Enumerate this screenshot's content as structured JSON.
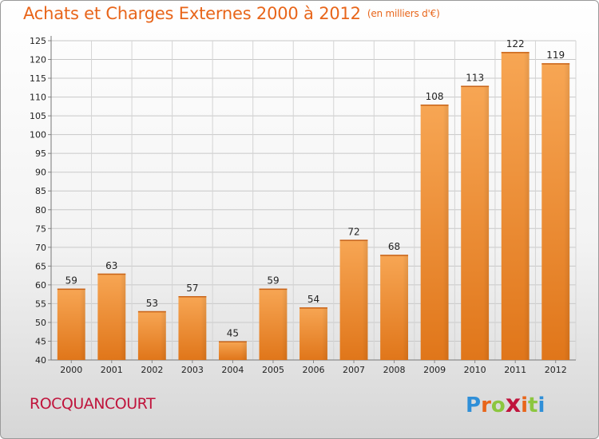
{
  "header": {
    "title": "Achats et Charges Externes 2000 à 2012",
    "unit": "(en milliers d'€)"
  },
  "footer": {
    "commune": "ROCQUANCOURT",
    "logo_letters": [
      "P",
      "r",
      "o",
      "x",
      "i",
      "t",
      "i"
    ],
    "logo_colors": [
      "#2f8fd8",
      "#e8651a",
      "#8cc63f",
      "#c0143c",
      "#e8651a",
      "#8cc63f",
      "#2f8fd8"
    ]
  },
  "chart_data": {
    "type": "bar",
    "categories": [
      "2000",
      "2001",
      "2002",
      "2003",
      "2004",
      "2005",
      "2006",
      "2007",
      "2008",
      "2009",
      "2010",
      "2011",
      "2012"
    ],
    "values": [
      59,
      63,
      53,
      57,
      45,
      59,
      54,
      72,
      68,
      108,
      113,
      122,
      119
    ],
    "ylim": [
      40,
      125
    ],
    "yticks": [
      40,
      45,
      50,
      55,
      60,
      65,
      70,
      75,
      80,
      85,
      90,
      95,
      100,
      105,
      110,
      115,
      120,
      125
    ],
    "grid": true,
    "bar_color": "#f0892a"
  }
}
